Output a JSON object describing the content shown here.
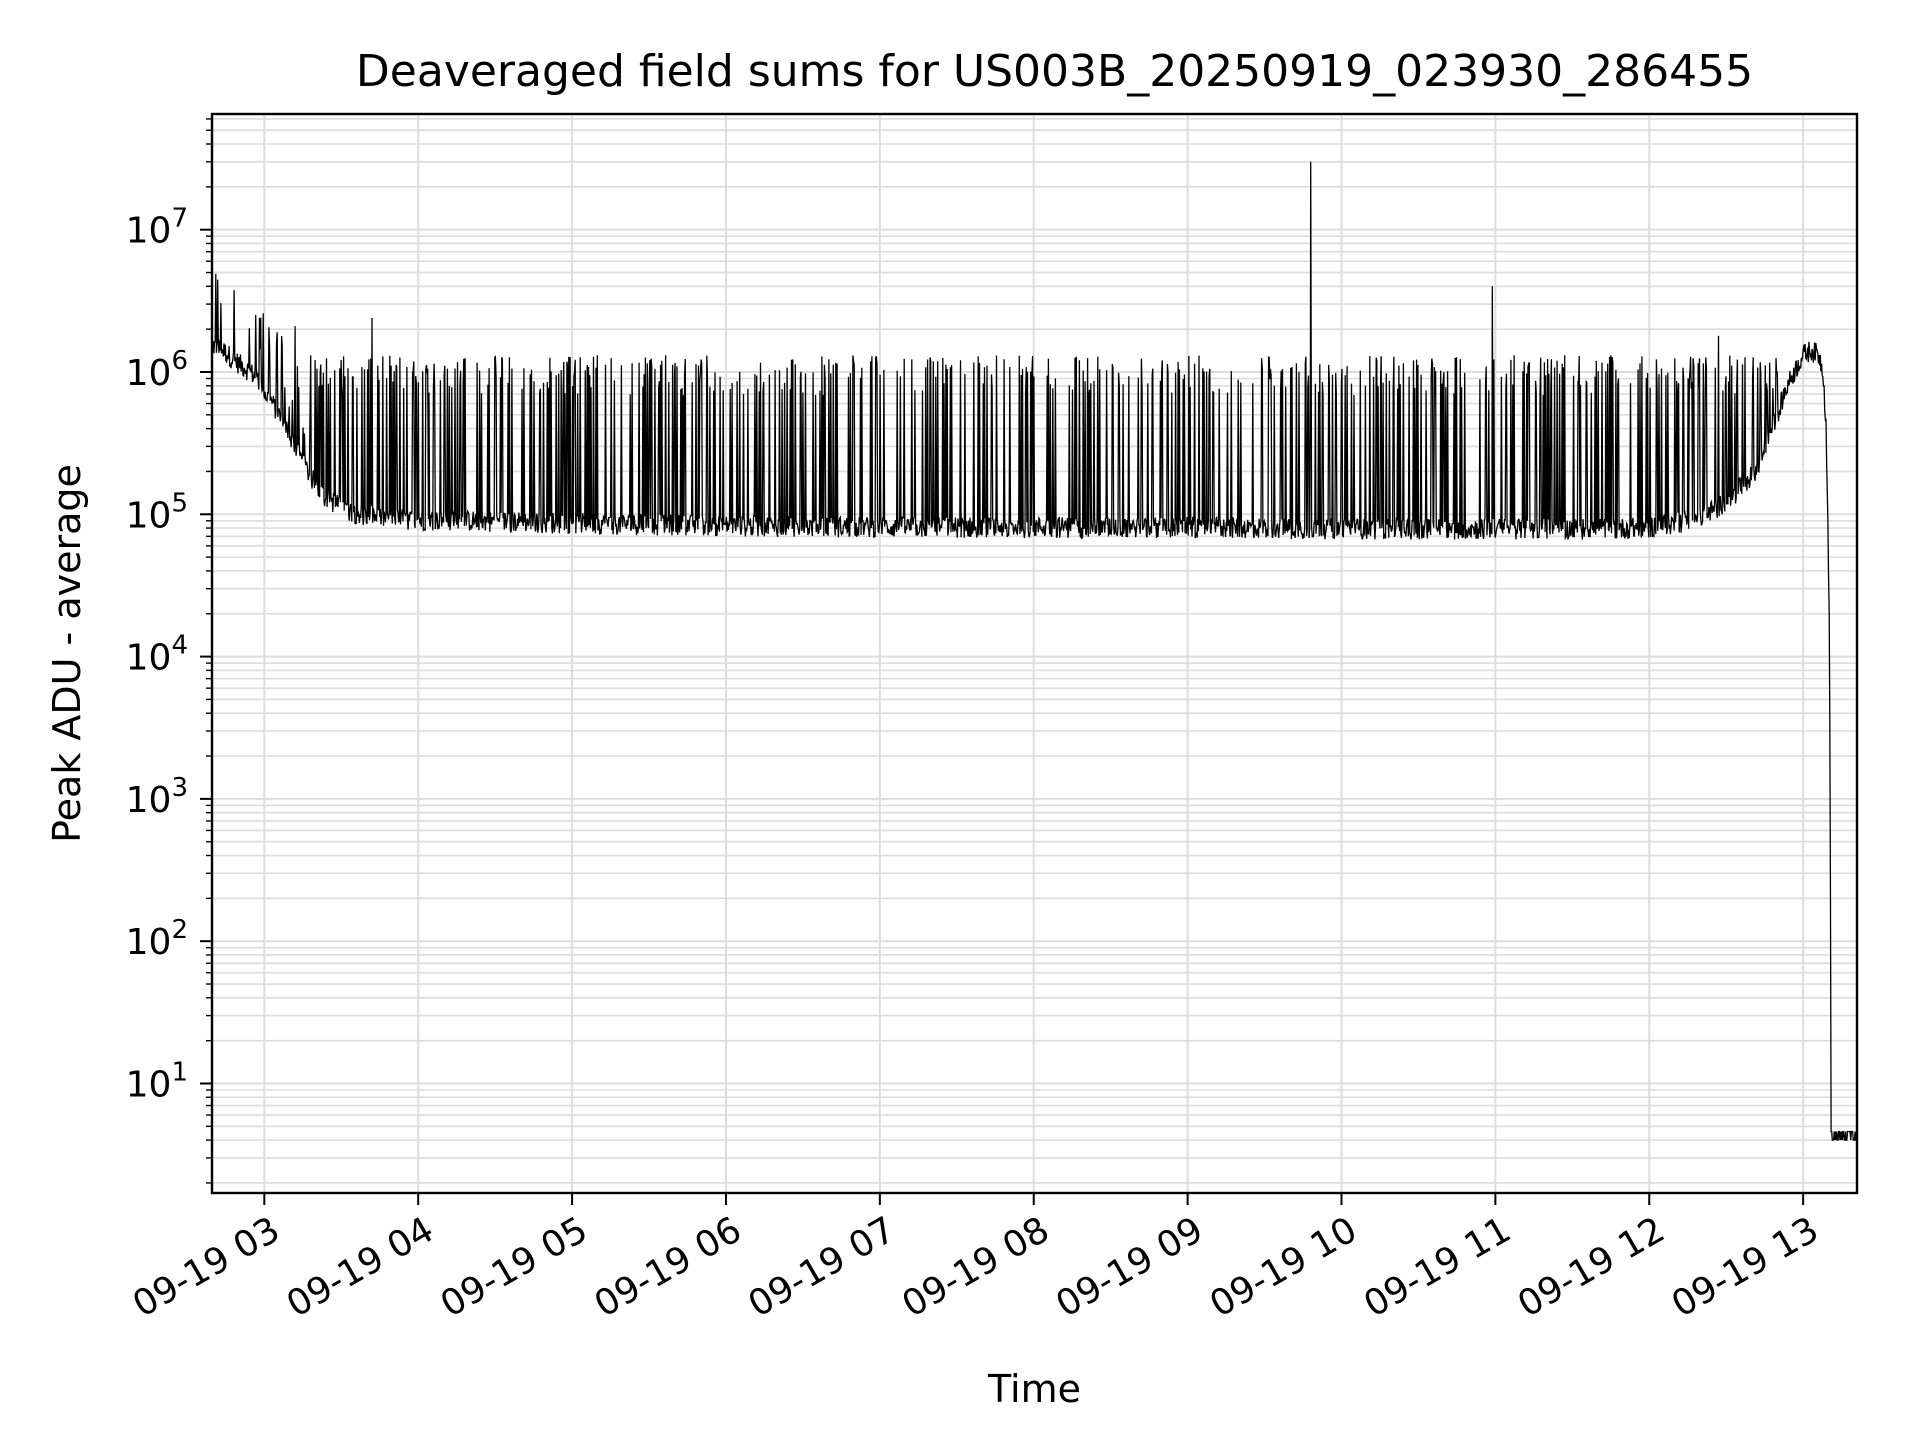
{
  "chart_data": {
    "type": "line",
    "title": "Deaveraged field sums for US003B_20250919_023930_286455",
    "xlabel": "Time",
    "ylabel": "Peak ADU - average",
    "yscale": "log",
    "ylim": [
      1.7,
      65000000
    ],
    "grid": true,
    "line_color": "#000000",
    "grid_color": "#dddddd",
    "x_tick_labels": [
      "09-19 03",
      "09-19 04",
      "09-19 05",
      "09-19 06",
      "09-19 07",
      "09-19 08",
      "09-19 09",
      "09-19 10",
      "09-19 11",
      "09-19 12",
      "09-19 13"
    ],
    "x_tick_hours": [
      3,
      4,
      5,
      6,
      7,
      8,
      9,
      10,
      11,
      12,
      13
    ],
    "xlim_hours": [
      2.66,
      13.35
    ],
    "y_ticks": [
      {
        "value": 10,
        "base": "10",
        "exp": "1"
      },
      {
        "value": 100,
        "base": "10",
        "exp": "2"
      },
      {
        "value": 1000,
        "base": "10",
        "exp": "3"
      },
      {
        "value": 10000,
        "base": "10",
        "exp": "4"
      },
      {
        "value": 100000,
        "base": "10",
        "exp": "5"
      },
      {
        "value": 1000000,
        "base": "10",
        "exp": "6"
      },
      {
        "value": 10000000,
        "base": "10",
        "exp": "7"
      }
    ],
    "series": [
      {
        "name": "Peak ADU - average",
        "description_points": {
          "x_hours": [
            2.66,
            2.7,
            2.75,
            2.8,
            2.85,
            2.9,
            2.95,
            3.0,
            3.05,
            3.1,
            3.15,
            3.2,
            3.25,
            3.3,
            3.4,
            3.5,
            3.6,
            3.7,
            3.8,
            4.0,
            4.5,
            5.0,
            6.0,
            7.0,
            8.0,
            9.0,
            10.0,
            11.0,
            11.8,
            12.0,
            12.3,
            12.5,
            12.7,
            12.8,
            12.9,
            13.0,
            13.05,
            13.1,
            13.13,
            13.15,
            13.17,
            13.18,
            13.19,
            13.2,
            13.35
          ],
          "baseline": [
            1500000,
            1450000,
            1350000,
            1200000,
            1100000,
            1000000,
            900000,
            700000,
            600000,
            480000,
            380000,
            300000,
            230000,
            180000,
            130000,
            110000,
            100000,
            95000,
            92000,
            90000,
            88000,
            85000,
            82000,
            80000,
            80000,
            80000,
            78000,
            78000,
            78000,
            80000,
            90000,
            120000,
            200000,
            400000,
            800000,
            1300000,
            1400000,
            1300000,
            1000000,
            400000,
            20000,
            60,
            18,
            4,
            4
          ]
        },
        "notable_spikes": [
          {
            "x_hours": 3.2,
            "value": 2100000
          },
          {
            "x_hours": 3.7,
            "value": 2400000
          },
          {
            "x_hours": 9.8,
            "value": 30000000
          },
          {
            "x_hours": 10.98,
            "value": 4000000
          },
          {
            "x_hours": 12.45,
            "value": 1800000
          }
        ],
        "burst_upper": 1250000,
        "burst_region_hours": [
          3.3,
          12.85
        ]
      }
    ]
  }
}
